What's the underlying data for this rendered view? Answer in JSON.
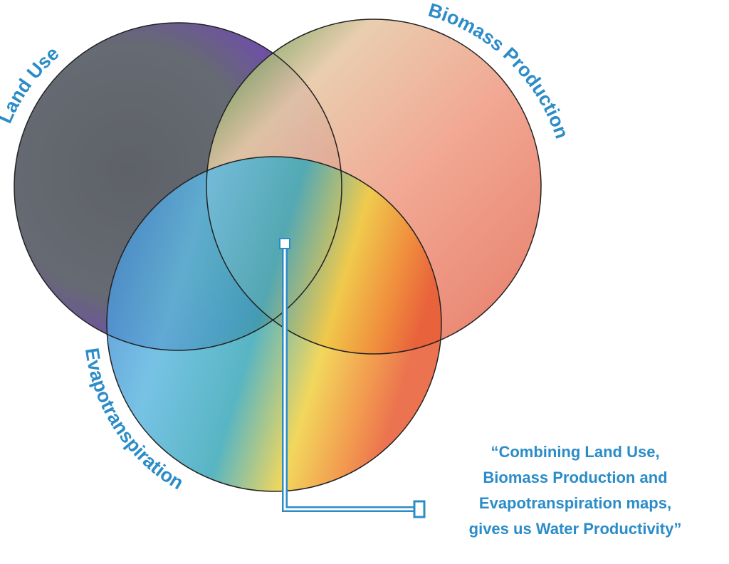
{
  "labels": {
    "land_use": "Land Use",
    "biomass": "Biomass Production",
    "evapotranspiration": "Evapotranspiration"
  },
  "quote": [
    "“Combining Land Use,",
    "Biomass Production and",
    "Evapotranspiration maps,",
    "gives us Water Productivity”"
  ]
}
